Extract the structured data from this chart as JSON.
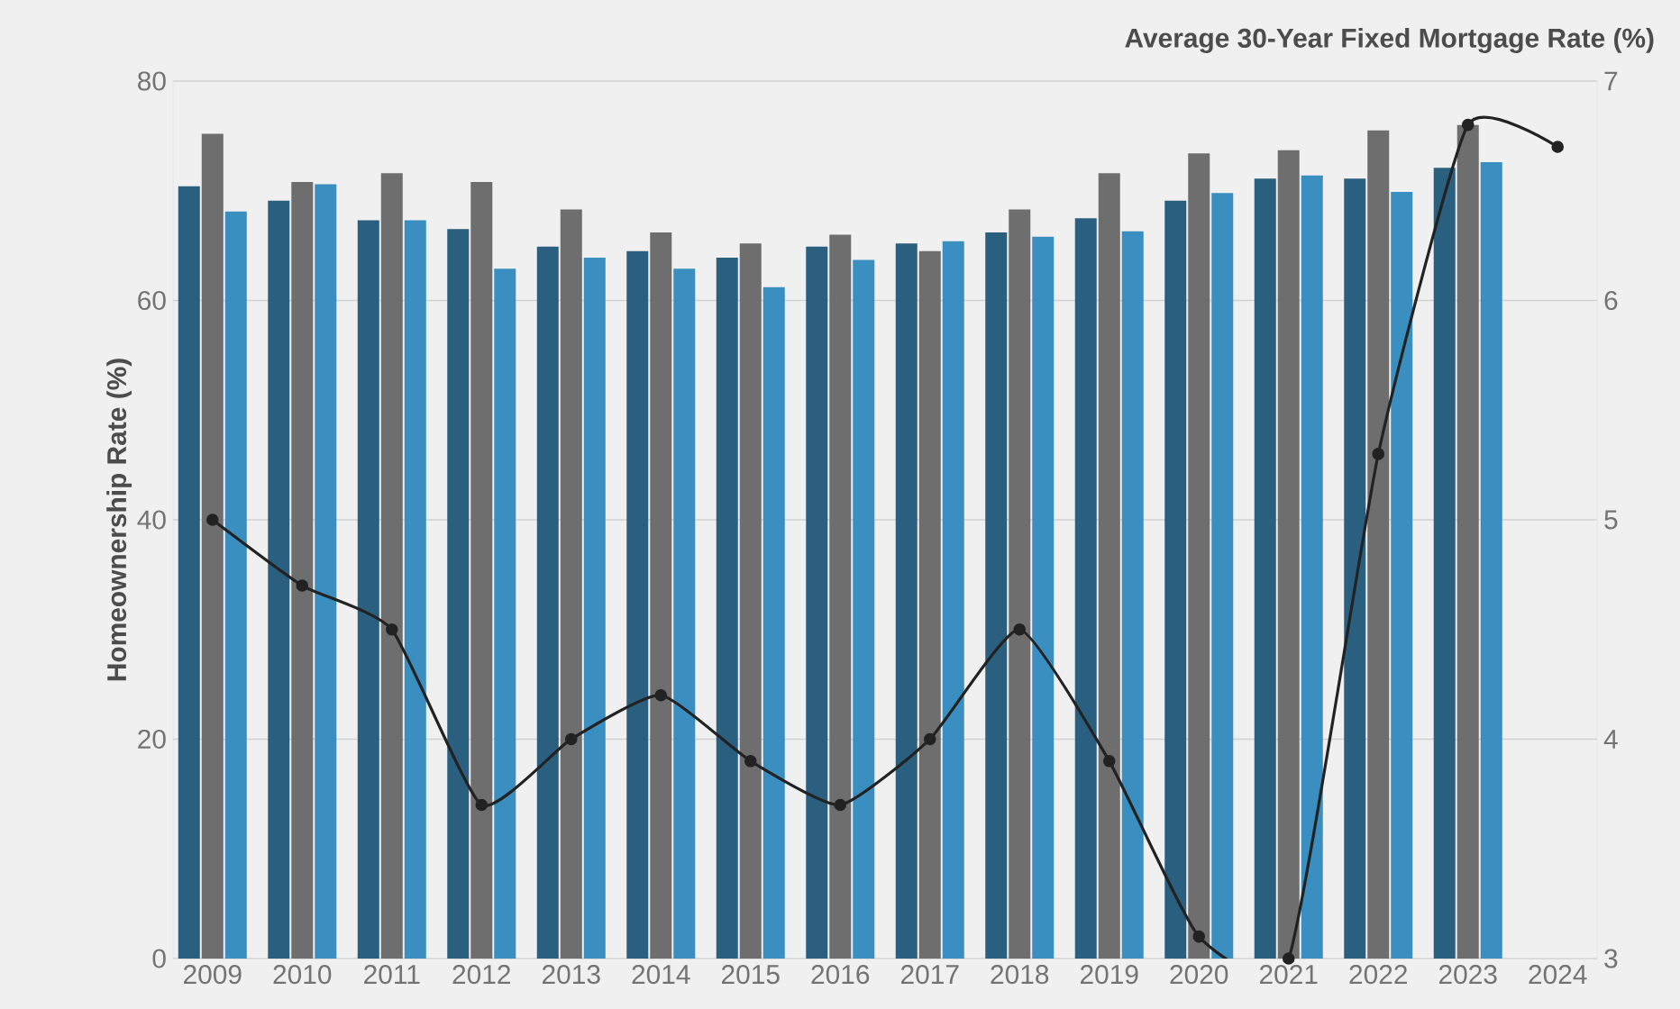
{
  "chart_data": {
    "type": "bar",
    "ylabel": "Homeownership Rate (%)",
    "y2label": "Average 30-Year Fixed Mortgage Rate (%)",
    "categories": [
      "2009",
      "2010",
      "2011",
      "2012",
      "2013",
      "2014",
      "2015",
      "2016",
      "2017",
      "2018",
      "2019",
      "2020",
      "2021",
      "2022",
      "2023",
      "2024"
    ],
    "series": [
      {
        "color": "#2a5f80",
        "values": [
          70.4,
          69.1,
          67.3,
          66.5,
          64.9,
          64.5,
          63.9,
          64.9,
          65.2,
          66.2,
          67.5,
          69.1,
          71.1,
          71.1,
          72.1,
          null
        ]
      },
      {
        "color": "#6e6e6e",
        "values": [
          75.2,
          70.8,
          71.6,
          70.8,
          68.3,
          66.2,
          65.2,
          66.0,
          64.5,
          68.3,
          71.6,
          73.4,
          73.7,
          75.5,
          76.0,
          null
        ]
      },
      {
        "color": "#3a8fc0",
        "values": [
          68.1,
          70.6,
          67.3,
          62.9,
          63.9,
          62.9,
          61.2,
          63.7,
          65.4,
          65.8,
          66.3,
          69.8,
          71.4,
          69.9,
          72.6,
          null
        ]
      },
      {
        "type": "line",
        "axis": "y2",
        "color": "#222222",
        "values": [
          5.0,
          4.7,
          4.5,
          3.7,
          4.0,
          4.2,
          3.9,
          3.7,
          4.0,
          4.5,
          3.9,
          3.1,
          3.0,
          5.3,
          6.8,
          6.7
        ]
      }
    ],
    "ylim": [
      0,
      80
    ],
    "yticks": [
      0,
      20,
      40,
      60,
      80
    ],
    "y2lim": [
      3,
      7
    ],
    "y2ticks": [
      3,
      4,
      5,
      6,
      7
    ],
    "grid": "y",
    "marker": "circle",
    "line_style": "solid"
  }
}
